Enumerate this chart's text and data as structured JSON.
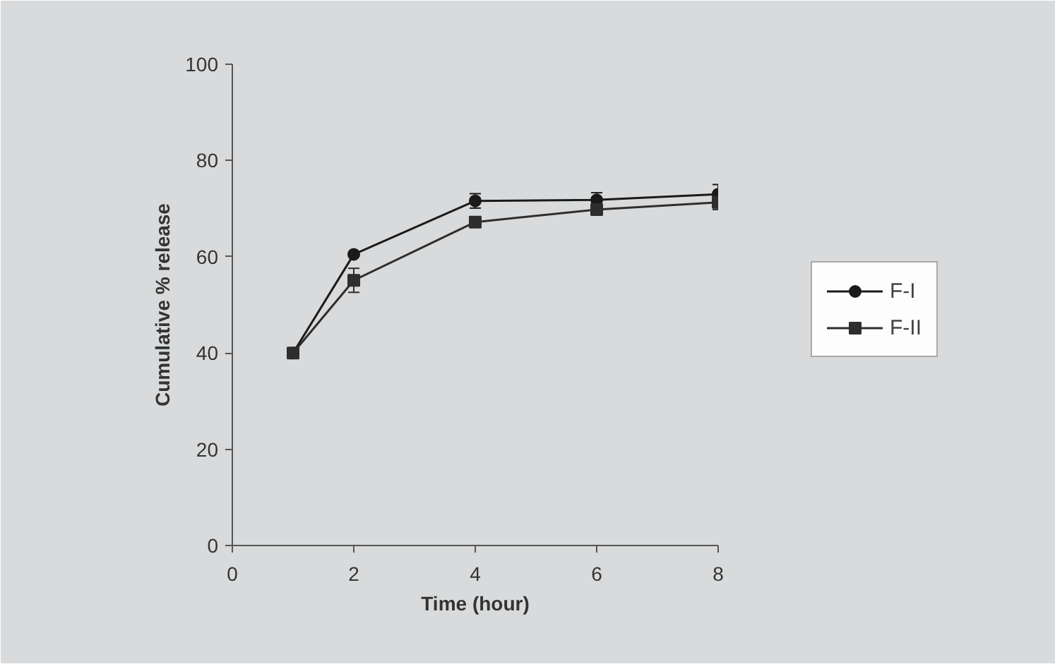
{
  "chart_data": {
    "type": "line",
    "xlabel": "Time (hour)",
    "ylabel": "Cumulative % release",
    "x": [
      1,
      2,
      4,
      6,
      8
    ],
    "series": [
      {
        "name": "F-I",
        "color": "#1a1a1a",
        "marker": "circle",
        "values": [
          40,
          60.5,
          71.6,
          71.8,
          73
        ],
        "errors": [
          null,
          null,
          1.5,
          1.5,
          2
        ]
      },
      {
        "name": "F-II",
        "color": "#2e2e2e",
        "marker": "square",
        "values": [
          40,
          55.1,
          67.2,
          69.8,
          71.3
        ],
        "errors": [
          null,
          2.5,
          1,
          1,
          1.5
        ]
      }
    ],
    "xlim": [
      0,
      8
    ],
    "xticks": [
      0,
      2,
      4,
      6,
      8
    ],
    "ylim": [
      0,
      100
    ],
    "yticks": [
      0,
      20,
      40,
      60,
      80,
      100
    ],
    "grid": false,
    "legend": "right",
    "line_style": "solid"
  }
}
